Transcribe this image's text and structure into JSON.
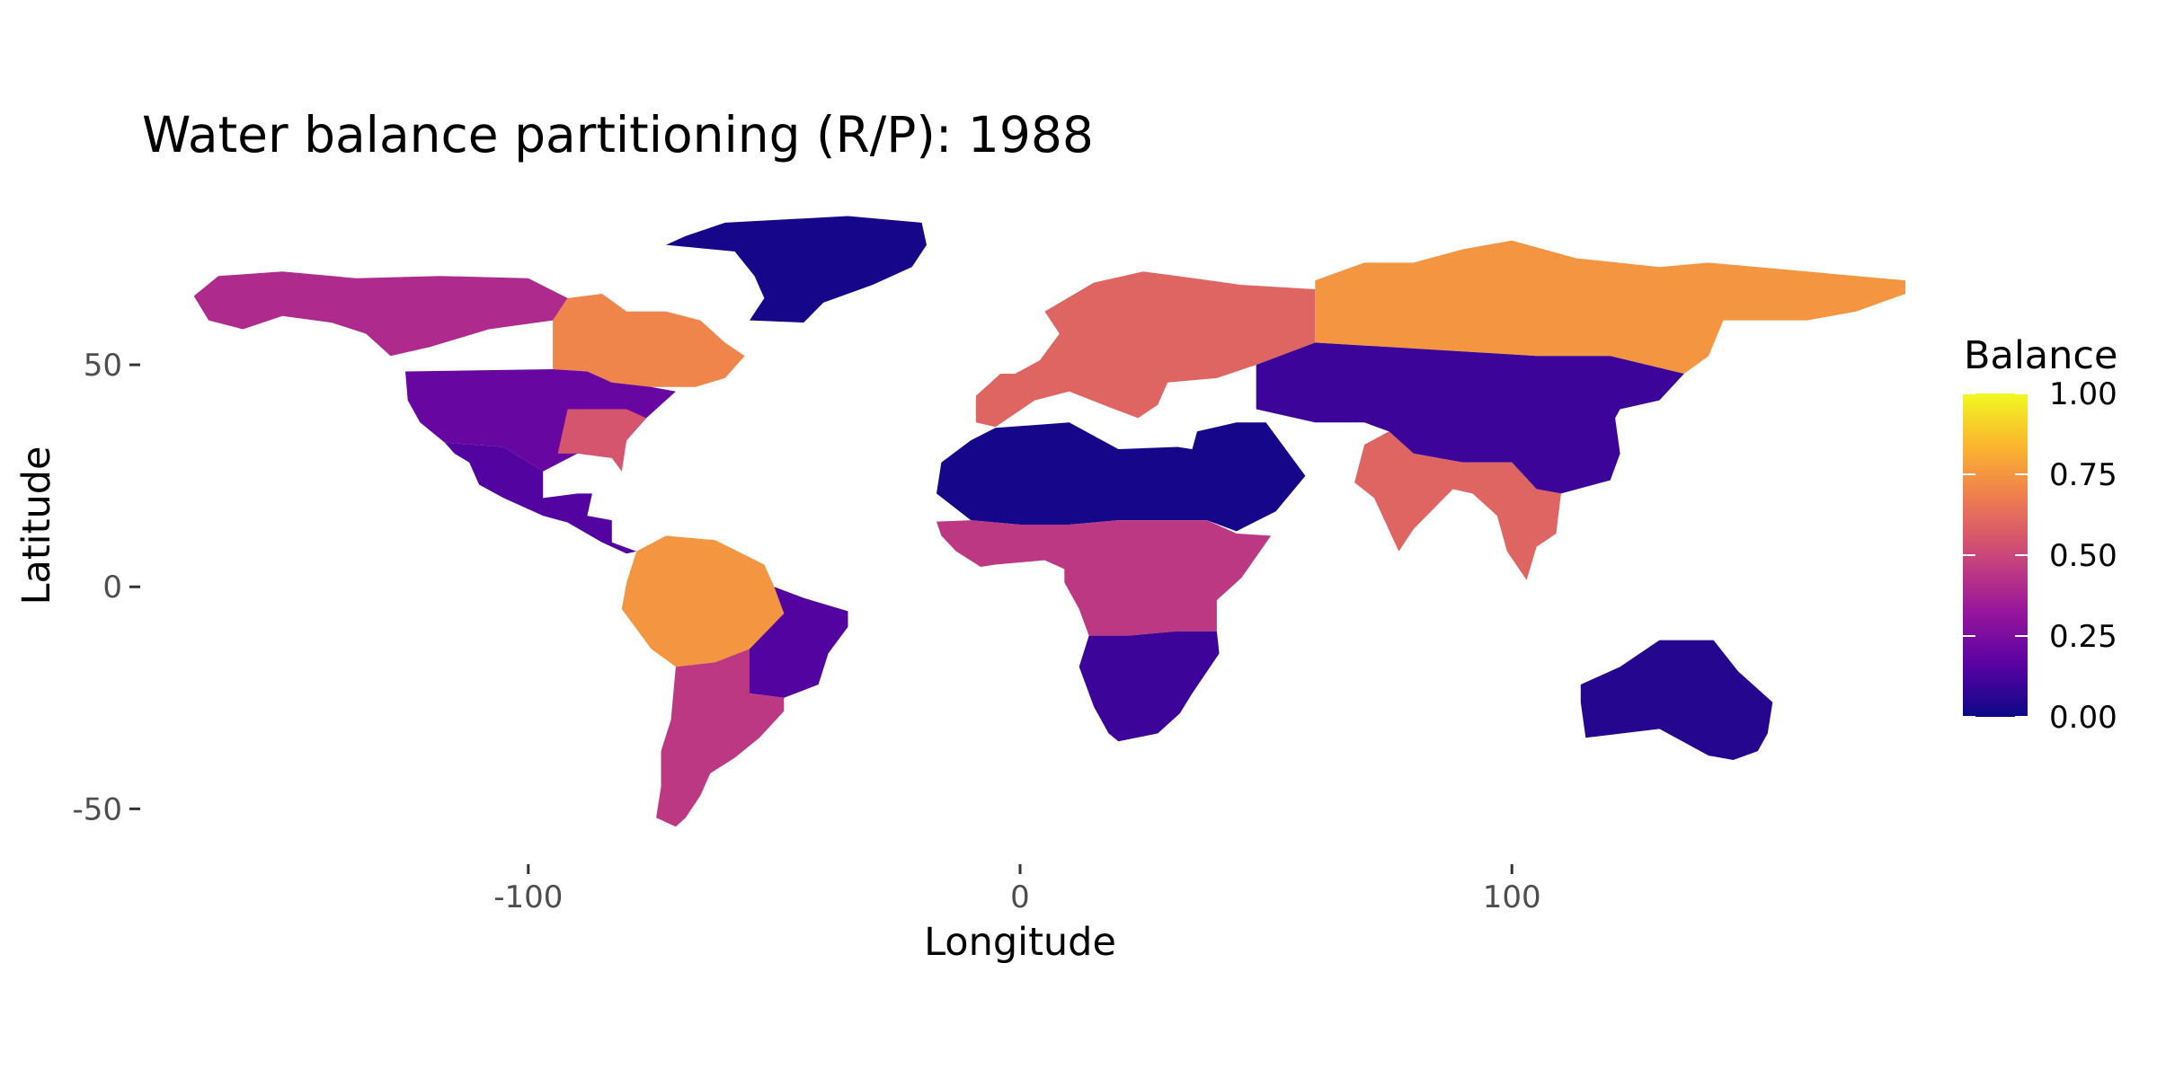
{
  "title": "Water balance partitioning (R/P): 1988",
  "x_axis": {
    "label": "Longitude",
    "ticks": [
      -100,
      0,
      100
    ],
    "range": [
      -180,
      180
    ]
  },
  "y_axis": {
    "label": "Latitude",
    "ticks": [
      50,
      0,
      -50
    ],
    "range": [
      -57,
      84
    ]
  },
  "legend": {
    "title": "Balance",
    "labels": [
      "1.00",
      "0.75",
      "0.50",
      "0.25",
      "0.00"
    ],
    "range": [
      0,
      1
    ],
    "colormap": "plasma",
    "colors": [
      "#0d0887",
      "#5b02a3",
      "#9a179b",
      "#cb4679",
      "#ed7953",
      "#fbb32f",
      "#f0f921"
    ],
    "position": "right"
  },
  "chart_data": {
    "type": "heatmap",
    "title": "Water balance partitioning (R/P): 1988",
    "xlabel": "Longitude",
    "ylabel": "Latitude",
    "xlim": [
      -180,
      180
    ],
    "ylim": [
      -57,
      84
    ],
    "x_ticks": [
      -100,
      0,
      100
    ],
    "y_ticks": [
      -50,
      0,
      50
    ],
    "value_label": "Balance",
    "value_range": [
      0,
      1
    ],
    "grid": false,
    "legend_position": "right",
    "regions": [
      {
        "name": "Greenland",
        "value": 0.02
      },
      {
        "name": "Alaska and western Canada",
        "value": 0.4
      },
      {
        "name": "Eastern Canada",
        "value": 0.7
      },
      {
        "name": "United States",
        "value": 0.2
      },
      {
        "name": "Southeastern United States",
        "value": 0.55
      },
      {
        "name": "Mexico and Central America",
        "value": 0.15
      },
      {
        "name": "Amazon basin",
        "value": 0.75
      },
      {
        "name": "Eastern Brazil",
        "value": 0.15
      },
      {
        "name": "Southern South America",
        "value": 0.45
      },
      {
        "name": "Sahara and Arabia",
        "value": 0.02
      },
      {
        "name": "Central Africa",
        "value": 0.45
      },
      {
        "name": "Southern Africa",
        "value": 0.1
      },
      {
        "name": "Europe",
        "value": 0.6
      },
      {
        "name": "Northern Russia",
        "value": 0.75
      },
      {
        "name": "Central Asia",
        "value": 0.1
      },
      {
        "name": "Southeast Asia",
        "value": 0.6
      },
      {
        "name": "Australia",
        "value": 0.05
      }
    ]
  }
}
